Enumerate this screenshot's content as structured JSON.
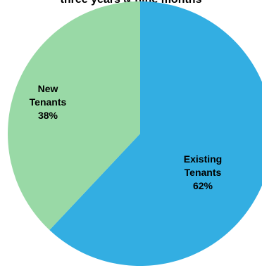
{
  "chart_data": {
    "type": "pie",
    "title": "three years & nine months",
    "slices": [
      {
        "label_lines": [
          "Existing",
          "Tenants"
        ],
        "value": 62,
        "value_text": "62%",
        "color": "#33aee2"
      },
      {
        "label_lines": [
          "New",
          "Tenants"
        ],
        "value": 38,
        "value_text": "38%",
        "color": "#99d9a6"
      }
    ],
    "start": "12 o'clock",
    "direction": "clockwise"
  }
}
